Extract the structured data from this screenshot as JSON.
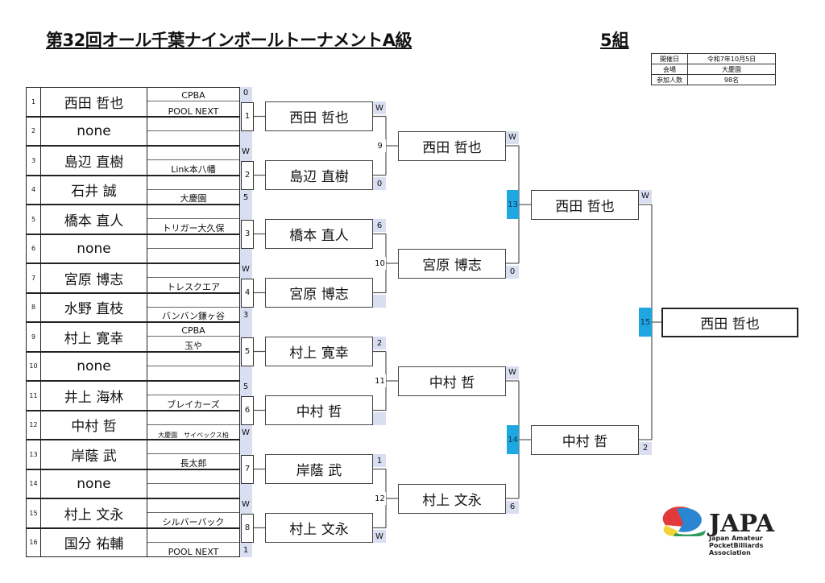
{
  "header": {
    "title": "第32回オール千葉ナインボールトーナメントA級",
    "group": "5組"
  },
  "info": [
    {
      "key": "開催日",
      "value": "令和7年10月5日"
    },
    {
      "key": "会場",
      "value": "大慶園"
    },
    {
      "key": "参加人数",
      "value": "98名"
    }
  ],
  "players": [
    {
      "num": "1",
      "name": "西田 哲也",
      "teams": [
        "CPBA",
        "POOL NEXT"
      ]
    },
    {
      "num": "2",
      "name": "none",
      "teams": [
        "",
        ""
      ]
    },
    {
      "num": "3",
      "name": "島辺 直樹",
      "teams": [
        "",
        "Link本八幡"
      ]
    },
    {
      "num": "4",
      "name": "石井 誠",
      "teams": [
        "",
        "大慶園"
      ]
    },
    {
      "num": "5",
      "name": "橋本 直人",
      "teams": [
        "",
        "トリガー大久保"
      ]
    },
    {
      "num": "6",
      "name": "none",
      "teams": [
        "",
        ""
      ]
    },
    {
      "num": "7",
      "name": "宮原 博志",
      "teams": [
        "",
        "トレスクエア"
      ]
    },
    {
      "num": "8",
      "name": "水野 直枝",
      "teams": [
        "",
        "バンバン鎌ヶ谷"
      ]
    },
    {
      "num": "9",
      "name": "村上 寛幸",
      "teams": [
        "CPBA",
        "玉や"
      ]
    },
    {
      "num": "10",
      "name": "none",
      "teams": [
        "",
        ""
      ]
    },
    {
      "num": "11",
      "name": "井上 海林",
      "teams": [
        "",
        "ブレイカーズ"
      ]
    },
    {
      "num": "12",
      "name": "中村 哲",
      "teams": [
        "",
        "大慶園　サイベックス柏"
      ]
    },
    {
      "num": "13",
      "name": "岸蔭 武",
      "teams": [
        "",
        "長太郎"
      ]
    },
    {
      "num": "14",
      "name": "none",
      "teams": [
        "",
        ""
      ]
    },
    {
      "num": "15",
      "name": "村上 文永",
      "teams": [
        "",
        "シルバーバック"
      ]
    },
    {
      "num": "16",
      "name": "国分 祐輔",
      "teams": [
        "",
        "POOL NEXT"
      ]
    }
  ],
  "round1": [
    {
      "match": "1",
      "score_top": "0",
      "score_bottom": ""
    },
    {
      "match": "2",
      "score_top": "W",
      "score_bottom": "5"
    },
    {
      "match": "3",
      "score_top": "",
      "score_bottom": ""
    },
    {
      "match": "4",
      "score_top": "W",
      "score_bottom": "3"
    },
    {
      "match": "5",
      "score_top": "",
      "score_bottom": ""
    },
    {
      "match": "6",
      "score_top": "5",
      "score_bottom": "W"
    },
    {
      "match": "7",
      "score_top": "",
      "score_bottom": ""
    },
    {
      "match": "8",
      "score_top": "W",
      "score_bottom": "1"
    }
  ],
  "round1_winners": [
    {
      "name": "西田 哲也",
      "score": "W"
    },
    {
      "name": "島辺 直樹",
      "score": "0"
    },
    {
      "name": "橋本 直人",
      "score": "6"
    },
    {
      "name": "宮原 博志",
      "score": ""
    },
    {
      "name": "村上 寛幸",
      "score": "2"
    },
    {
      "name": "中村 哲",
      "score": ""
    },
    {
      "name": "岸蔭 武",
      "score": "1"
    },
    {
      "name": "村上 文永",
      "score": "W"
    }
  ],
  "round2_matches": [
    "9",
    "10",
    "11",
    "12"
  ],
  "round2_winners": [
    {
      "name": "西田 哲也",
      "score": "W"
    },
    {
      "name": "宮原 博志",
      "score": "0"
    },
    {
      "name": "中村 哲",
      "score": "W"
    },
    {
      "name": "村上 文永",
      "score": "6"
    }
  ],
  "round3_matches": [
    "13",
    "14"
  ],
  "round3_winners": [
    {
      "name": "西田 哲也",
      "score": "W"
    },
    {
      "name": "中村 哲",
      "score": "2"
    }
  ],
  "final": {
    "match": "15",
    "champion": "西田 哲也"
  },
  "logo": {
    "text": "JAPA",
    "subtitle": "Japan Amateur PocketBilliards Association"
  },
  "colors": {
    "match_highlight": "#1ea7e1",
    "score_strip": "#d9def0"
  }
}
